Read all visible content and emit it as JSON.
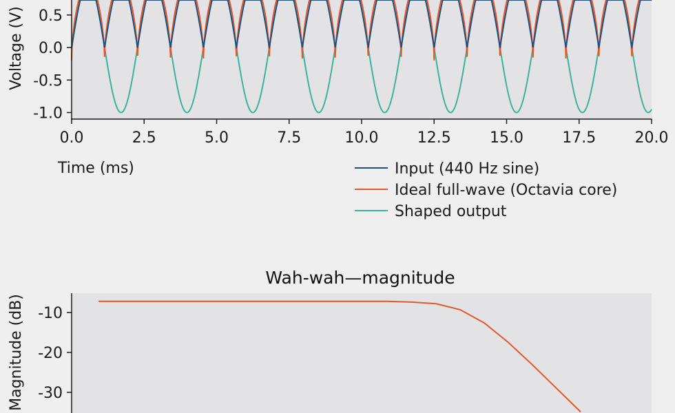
{
  "chart_data": [
    {
      "type": "line",
      "title": "",
      "xlabel": "Time (ms)",
      "ylabel": "Voltage (V)",
      "xlim": [
        0,
        20
      ],
      "ylim": [
        -1.1,
        1.1
      ],
      "x_ticks": [
        "0.0",
        "2.5",
        "5.0",
        "7.5",
        "10.0",
        "12.5",
        "15.0",
        "17.5",
        "20.0"
      ],
      "y_ticks": [
        "0.5",
        "0.0",
        "-0.5",
        "-1.0"
      ],
      "frequency_hz": 440,
      "grid": false,
      "legend_position": "below-right",
      "series": [
        {
          "name": "Input (440 Hz sine)",
          "color": "#1f4f7d"
        },
        {
          "name": "Ideal full-wave (Octavia core)",
          "color": "#e2582c"
        },
        {
          "name": "Shaped output",
          "color": "#3bb39a"
        }
      ]
    },
    {
      "type": "line",
      "title": "Wah-wah—magnitude",
      "ylabel": "Magnitude (dB)",
      "y_ticks": [
        "-10",
        "-20",
        "-30"
      ],
      "grid": false,
      "series": [
        {
          "color": "#e2582c",
          "magnitude_db": [
            -7.2,
            -7.2,
            -7.2,
            -7.2,
            -7.2,
            -7.2,
            -7.2,
            -7.2,
            -7.2,
            -7.2,
            -7.2,
            -7.2,
            -7.2,
            -7.4,
            -7.8,
            -9.3,
            -12.6,
            -17.5,
            -23.1,
            -29.0,
            -34.9
          ]
        }
      ]
    }
  ]
}
